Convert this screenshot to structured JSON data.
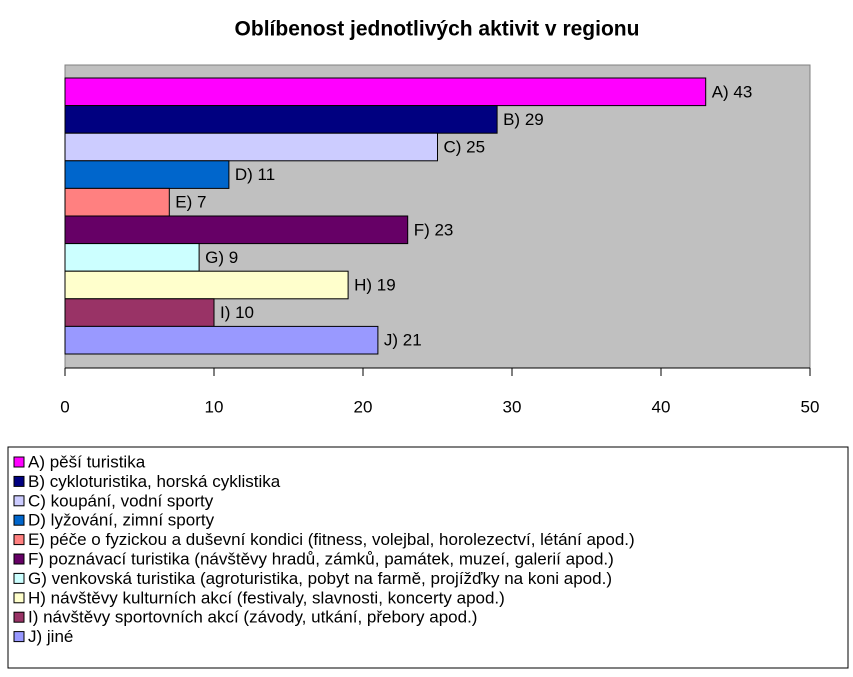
{
  "chart_data": {
    "type": "hbar",
    "title": "Oblíbenost jednotlivých aktivit v regionu",
    "categories": [
      "A) pěší turistika",
      "B) cykloturistika, horská cyklistika",
      "C) koupání, vodní sporty",
      "D) lyžování, zimní sporty",
      "E) péče o fyzickou a duševní kondici (fitness, volejbal, horolezectví, létání apod.)",
      "F) poznávací turistika (návštěvy hradů, zámků, památek, muzeí, galerií apod.)",
      "G) venkovská turistika (agroturistika, pobyt na farmě, projížďky na koni apod.)",
      "H) návštěvy kulturních akcí (festivaly, slavnosti, koncerty apod.)",
      "I) návštěvy sportovních akcí (závody, utkání, přebory apod.)",
      "J) jiné"
    ],
    "values": [
      43,
      29,
      25,
      11,
      7,
      23,
      9,
      19,
      10,
      21
    ],
    "value_labels": [
      "A) 43",
      "B) 29",
      "C) 25",
      "D) 11",
      "E) 7",
      "F) 23",
      "G) 9",
      "H) 19",
      "I) 10",
      "J) 21"
    ],
    "colors": [
      "#ff00ff",
      "#000080",
      "#ccccff",
      "#0066cc",
      "#ff8080",
      "#660066",
      "#ccffff",
      "#ffffcc",
      "#993366",
      "#9999ff"
    ],
    "xlim": [
      0,
      50
    ],
    "xticks": [
      0,
      10,
      20,
      30,
      40,
      50
    ],
    "grid": false,
    "legend": "bottom"
  }
}
